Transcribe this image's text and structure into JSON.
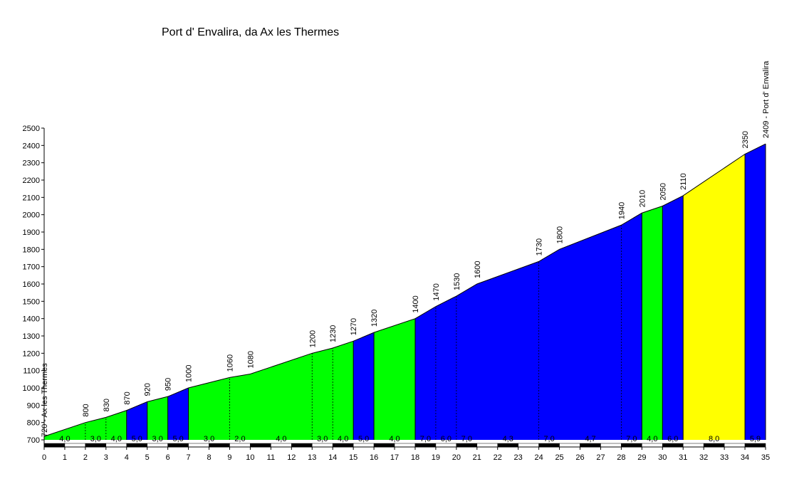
{
  "chart_data": {
    "type": "area",
    "title": "Port d' Envalira, da Ax les Thermes",
    "xlabel": "",
    "ylabel": "",
    "xlim": [
      0,
      35
    ],
    "ylim": [
      700,
      2500
    ],
    "x_ticks": [
      0,
      1,
      2,
      3,
      4,
      5,
      6,
      7,
      8,
      9,
      10,
      11,
      12,
      13,
      14,
      15,
      16,
      17,
      18,
      19,
      20,
      21,
      22,
      23,
      24,
      25,
      26,
      27,
      28,
      29,
      30,
      31,
      32,
      33,
      34,
      35
    ],
    "y_ticks": [
      700,
      800,
      900,
      1000,
      1100,
      1200,
      1300,
      1400,
      1500,
      1600,
      1700,
      1800,
      1900,
      2000,
      2100,
      2200,
      2300,
      2400,
      2500
    ],
    "profile": [
      {
        "km": 0,
        "alt": 720
      },
      {
        "km": 2,
        "alt": 800
      },
      {
        "km": 3,
        "alt": 830
      },
      {
        "km": 4,
        "alt": 870
      },
      {
        "km": 5,
        "alt": 920
      },
      {
        "km": 6,
        "alt": 950
      },
      {
        "km": 7,
        "alt": 1000
      },
      {
        "km": 9,
        "alt": 1060
      },
      {
        "km": 10,
        "alt": 1080
      },
      {
        "km": 13,
        "alt": 1200
      },
      {
        "km": 14,
        "alt": 1230
      },
      {
        "km": 15,
        "alt": 1270
      },
      {
        "km": 16,
        "alt": 1320
      },
      {
        "km": 18,
        "alt": 1400
      },
      {
        "km": 19,
        "alt": 1470
      },
      {
        "km": 20,
        "alt": 1530
      },
      {
        "km": 21,
        "alt": 1600
      },
      {
        "km": 24,
        "alt": 1730
      },
      {
        "km": 25,
        "alt": 1800
      },
      {
        "km": 28,
        "alt": 1940
      },
      {
        "km": 29,
        "alt": 2010
      },
      {
        "km": 30,
        "alt": 2050
      },
      {
        "km": 31,
        "alt": 2110
      },
      {
        "km": 34,
        "alt": 2350
      },
      {
        "km": 35,
        "alt": 2409
      }
    ],
    "point_labels": [
      {
        "km": 0,
        "text": "720 - Ax les Thermes"
      },
      {
        "km": 2,
        "text": "800"
      },
      {
        "km": 3,
        "text": "830"
      },
      {
        "km": 4,
        "text": "870"
      },
      {
        "km": 5,
        "text": "920"
      },
      {
        "km": 6,
        "text": "950"
      },
      {
        "km": 7,
        "text": "1000"
      },
      {
        "km": 9,
        "text": "1060"
      },
      {
        "km": 10,
        "text": "1080"
      },
      {
        "km": 13,
        "text": "1200"
      },
      {
        "km": 14,
        "text": "1230"
      },
      {
        "km": 15,
        "text": "1270"
      },
      {
        "km": 16,
        "text": "1320"
      },
      {
        "km": 18,
        "text": "1400"
      },
      {
        "km": 19,
        "text": "1470"
      },
      {
        "km": 20,
        "text": "1530"
      },
      {
        "km": 21,
        "text": "1600"
      },
      {
        "km": 24,
        "text": "1730"
      },
      {
        "km": 25,
        "text": "1800"
      },
      {
        "km": 28,
        "text": "1940"
      },
      {
        "km": 29,
        "text": "2010"
      },
      {
        "km": 30,
        "text": "2050"
      },
      {
        "km": 31,
        "text": "2110"
      },
      {
        "km": 34,
        "text": "2350"
      },
      {
        "km": 35,
        "text": "2409 - Port d' Envalira"
      }
    ],
    "dashed_markers_km": [
      2,
      3,
      9,
      13,
      14,
      19,
      20,
      24,
      28
    ],
    "segments": [
      {
        "from": 0,
        "to": 4,
        "color": "#00ff00"
      },
      {
        "from": 4,
        "to": 5,
        "color": "#0000ff"
      },
      {
        "from": 5,
        "to": 6,
        "color": "#00ff00"
      },
      {
        "from": 6,
        "to": 7,
        "color": "#0000ff"
      },
      {
        "from": 7,
        "to": 15,
        "color": "#00ff00"
      },
      {
        "from": 15,
        "to": 16,
        "color": "#0000ff"
      },
      {
        "from": 16,
        "to": 18,
        "color": "#00ff00"
      },
      {
        "from": 18,
        "to": 29,
        "color": "#0000ff"
      },
      {
        "from": 29,
        "to": 30,
        "color": "#00ff00"
      },
      {
        "from": 30,
        "to": 31,
        "color": "#0000ff"
      },
      {
        "from": 31,
        "to": 34,
        "color": "#ffff00"
      },
      {
        "from": 34,
        "to": 35,
        "color": "#0000ff"
      }
    ],
    "gradient_labels": [
      {
        "km": 1,
        "text": "4,0"
      },
      {
        "km": 2.5,
        "text": "3,0"
      },
      {
        "km": 3.5,
        "text": "4,0"
      },
      {
        "km": 4.5,
        "text": "5,0"
      },
      {
        "km": 5.5,
        "text": "3,0"
      },
      {
        "km": 6.5,
        "text": "5,0"
      },
      {
        "km": 8,
        "text": "3,0"
      },
      {
        "km": 9.5,
        "text": "2,0"
      },
      {
        "km": 11.5,
        "text": "4,0"
      },
      {
        "km": 13.5,
        "text": "3,0"
      },
      {
        "km": 14.5,
        "text": "4,0"
      },
      {
        "km": 15.5,
        "text": "5,0"
      },
      {
        "km": 17,
        "text": "4,0"
      },
      {
        "km": 18.5,
        "text": "7,0"
      },
      {
        "km": 19.5,
        "text": "6,0"
      },
      {
        "km": 20.5,
        "text": "7,0"
      },
      {
        "km": 22.5,
        "text": "4,3"
      },
      {
        "km": 24.5,
        "text": "7,0"
      },
      {
        "km": 26.5,
        "text": "4,7"
      },
      {
        "km": 28.5,
        "text": "7,0"
      },
      {
        "km": 29.5,
        "text": "4,0"
      },
      {
        "km": 30.5,
        "text": "6,0"
      },
      {
        "km": 32.5,
        "text": "8,0"
      },
      {
        "km": 34.5,
        "text": "5,9"
      }
    ],
    "colors": {
      "green": "#00ff00",
      "blue": "#0000ff",
      "yellow": "#ffff00",
      "outline": "#000000"
    },
    "grid": false,
    "legend": "none"
  }
}
